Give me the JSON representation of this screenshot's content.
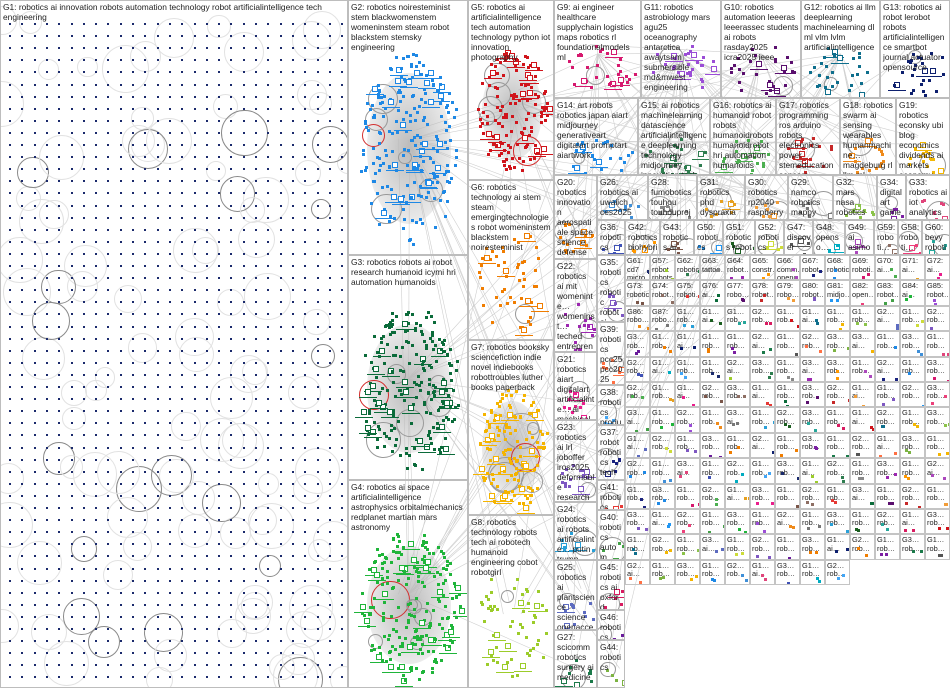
{
  "groups": [
    {
      "id": "G1",
      "label": "G1: robotics ai innovation robots automation technology robot artificialintelligence tech engineering",
      "color": "#1a2a6c"
    },
    {
      "id": "G2",
      "label": "G2: robotics noiresteminist stem blackwomenstem womeninstem steam robot blackstem stemsky engineering",
      "color": "#1e88e5"
    },
    {
      "id": "G3",
      "label": "G3: robotics robots ai robot research humanoid icymi hri automation humanoids",
      "color": "#0b6b3a"
    },
    {
      "id": "G4",
      "label": "G4: robotics ai space artificialintelligence astrophysics orbitalmechanics redplanet martian mars astronomy",
      "color": "#1fb53a"
    },
    {
      "id": "G5",
      "label": "G5: robotics ai artificialintelligence tech automation technology python iot innovation photography",
      "color": "#d0141b"
    },
    {
      "id": "G6",
      "label": "G6: robotics technology ai stem steam emergingtechnologies robot womeninstem blackstem noiresteminist",
      "color": "#f07d00"
    },
    {
      "id": "G7",
      "label": "G7: robotics booksky sciencefiction indie novel indiebooks robottroubles luther books paperback",
      "color": "#f5b400"
    },
    {
      "id": "G8",
      "label": "G8: robotics technology robots tech ai robotech humanoid engineering cobot robotgirl",
      "color": "#9ccc2a"
    },
    {
      "id": "G9",
      "label": "G9: ai engineer healthcare supplychain logistics maps robotics rl foundationalmodels ml",
      "color": "#d6186e"
    },
    {
      "id": "G10",
      "label": "G10: robotics automation leeeras leeerassec students ai robots rasday2025 icra2025 ieee",
      "color": "#5a0f6e"
    },
    {
      "id": "G11",
      "label": "G11: robotics astrobiology mars agu25 oceanography antarctica awaytsam submersible md&mwest engineering",
      "color": "#9b4dd6"
    },
    {
      "id": "G12",
      "label": "G12: robotics ai llm deeplearning machinelearning dl ml vlm lvlm artificialintelligence",
      "color": "#0e6e8c"
    },
    {
      "id": "G13",
      "label": "G13: robotics ai robot lerobot robots artificialintelligence smartbot journal actuator opensource",
      "color": "#0d1f6e"
    },
    {
      "id": "G14",
      "label": "G14: art robots robotics japan aiart midjourney generativeart digitalart promptart aiartwork",
      "color": "#1e88e5"
    },
    {
      "id": "G15",
      "label": "G15: ai robotics machinelearning datascience artificialintelligence deeplearning technology midjourney innovation tech",
      "color": "#2e7d4f"
    },
    {
      "id": "G16",
      "label": "G16: robotics ai humanoid robot robots humanoidrobots humanoidrobot hri automation humanoids",
      "color": "#4caf50"
    },
    {
      "id": "G17",
      "label": "G17: robotics programming ros arduino robots electronics power stemeducation sensors python…",
      "color": "#c62828"
    },
    {
      "id": "G18",
      "label": "G18: robotics swarm ai sensing wearables humanmachine… magdeburg rl llm ml",
      "color": "#ef8a1a"
    },
    {
      "id": "G19",
      "label": "G19: robotics econsky ubi blog economics dividends ai markets economy news",
      "color": "#f2b705"
    },
    {
      "id": "G20",
      "label": "G20: robotics innovation aerospatiale space science defense ai spacetech orbital orbitaldebris",
      "color": "#f07d00"
    },
    {
      "id": "G26",
      "label": "G26: robotics ai uwaiich ces2025 nvidia physicalai technology…",
      "color": "#3f8fd8"
    },
    {
      "id": "G28",
      "label": "G28: fumobotics touhou touhouproject fumo robotics…",
      "color": "#888"
    },
    {
      "id": "G31",
      "label": "G31: robotics phd dyspraxia dcd brnet body kinematic",
      "color": "#e6a020"
    },
    {
      "id": "G30",
      "label": "G30: robotics rp2040 raspberrypi… iot microcontrol…",
      "color": "#f29d38"
    },
    {
      "id": "G29",
      "label": "G29: namco robotics mappy 1980s videogames retrogaming…",
      "color": "#777"
    },
    {
      "id": "G32",
      "label": "G32: mars nasa robotics",
      "color": "#8bc34a"
    },
    {
      "id": "G34",
      "label": "G34: digitalart gameart pixelarts 16bits…",
      "color": "#7b1fa2"
    },
    {
      "id": "G33",
      "label": "G33: robotics ai iot analytics",
      "color": "#e0457b"
    },
    {
      "id": "G22",
      "label": "G22: robotics ai mit womeninte… womeninst… teched entreprene… womenintec… womensup…",
      "color": "#9c27b0"
    },
    {
      "id": "G21",
      "label": "G21: robotics aiart digitalart artificialinte… ai machinele… technology generative…",
      "color": "#e91e8c"
    },
    {
      "id": "G23",
      "label": "G23: robotics ai lrl joboffer iros2025 deformable research innovation rosmeetup… internship",
      "color": "#7e57c2"
    },
    {
      "id": "G24",
      "label": "G24: robotics ai robots artificialinte… putin trump ukraine musk…",
      "color": "#29a0d8"
    },
    {
      "id": "G25",
      "label": "G25: robotics ai plantscience science openaccess crop sustainable…",
      "color": "#5c6bc0"
    },
    {
      "id": "G27",
      "label": "G27: scicomm robotics surgery ai medicine",
      "color": "#1b7a4a"
    },
    {
      "id": "G36",
      "label": "G36: robotics robot robots…",
      "color": "#3f51b5"
    },
    {
      "id": "G42",
      "label": "G42: robotics biohybrid biomater…",
      "color": "#ff9800"
    },
    {
      "id": "G43",
      "label": "G43: robotics ai 3dprinting neuromo…",
      "color": "#795548"
    },
    {
      "id": "G50",
      "label": "G50: robotics modell…",
      "color": "#2196f3"
    },
    {
      "id": "G51",
      "label": "G51: robotics robot ai",
      "color": "#1b5e20"
    },
    {
      "id": "G52",
      "label": "G52: robotics hula hoop…",
      "color": "#cddc39"
    },
    {
      "id": "G47",
      "label": "G47: discover news new…",
      "color": "#555"
    },
    {
      "id": "G48",
      "label": "G48: openso… robotics futures…",
      "color": "#00acc1"
    },
    {
      "id": "G49",
      "label": "G49: ai asimov law robotic…",
      "color": "#ab47bc"
    },
    {
      "id": "G59",
      "label": "G59: roboti… stem edusk…",
      "color": "#8d6e63"
    },
    {
      "id": "G58",
      "label": "G58: roboti… mass… innov…",
      "color": "#ec407a"
    },
    {
      "id": "G60",
      "label": "G60: bevy roboti… rust?",
      "color": "#26a69a"
    },
    {
      "id": "G35",
      "label": "G35: robotics robotic robot ai compet… surgica…",
      "color": "#7e57c2"
    },
    {
      "id": "G39",
      "label": "G39: robotics pcc25 pcc2025 colorec…",
      "color": "#ff7043"
    },
    {
      "id": "G38",
      "label": "G38: robotics product plembs… stem…",
      "color": "#42a5f5"
    },
    {
      "id": "G37",
      "label": "G37: robot robotics tech thicc…",
      "color": "#1a237e"
    },
    {
      "id": "G41",
      "label": "G41: robotics swarmi… emerg… blobots…",
      "color": "#e53935"
    },
    {
      "id": "G40",
      "label": "G40: robotics autom… ai…",
      "color": "#43a047"
    },
    {
      "id": "G45",
      "label": "G45: robotics ai oxford…",
      "color": "#d81b60"
    },
    {
      "id": "G46",
      "label": "G46: robotics ttrpg kickste…",
      "color": "#6a1b9a"
    },
    {
      "id": "G44",
      "label": "G44: robotics",
      "color": "#7cb342"
    }
  ],
  "tiny_cells": [
    "G61: cd7 micro… night…",
    "G57: robot robots…",
    "G62: robotics…",
    "G63: tattoo…",
    "G64: robot…",
    "G65: constr…",
    "G66: comm… openc…",
    "G67: robot…",
    "G68: robotics…",
    "G69: roboti…",
    "G70: ai…",
    "G71: ai…",
    "G72: ai…",
    "G73: robotic…",
    "G74: robot…",
    "G75: roboti…",
    "G76: ai…",
    "G77: robo…",
    "G78: robot…",
    "G79: robo…",
    "G80: robot…",
    "G81: midjo…",
    "G82: open…",
    "G83: robot…",
    "G84: ai…",
    "G85: robot…",
    "G86: robo…",
    "G87: robo…",
    "G1… rob…",
    "G1… ai…",
    "G1… rob…",
    "G2… rob…",
    "G1… rob…",
    "G1… ai…",
    "G1… rob…",
    "G1… rob…",
    "G2… ai…",
    "G1… rob…",
    "G2… rob…",
    "G3… rob…",
    "G1… rob…",
    "G1… ai…",
    "G1… rob…",
    "G1… rob…",
    "G2… ai…",
    "G1… rob…",
    "G2… rob…",
    "G3… rob…",
    "G3… ai…",
    "G1… rob…",
    "G3… rob…",
    "G1… rob…",
    "G2… rob…",
    "G1… ai…",
    "G1… rob…",
    "G1… rob…",
    "G2… ai…",
    "G3… rob…",
    "G1… rob…",
    "G3… ai…",
    "G3… rob…",
    "G1… rob…",
    "G2… ai…",
    "G1… rob…",
    "G3… rob…",
    "G2… rob…",
    "G1… rob…",
    "G1… ai…",
    "G2… rob…",
    "G3… rob…",
    "G1… ai…",
    "G1… rob…",
    "G3… rob…",
    "G2… rob…",
    "G1… ai…",
    "G1… rob…",
    "G2… rob…",
    "G3… rob…",
    "G3… ai…",
    "G1… rob…",
    "G2… rob…",
    "G1… rob…",
    "G3… ai…",
    "G1… rob…",
    "G2… rob…",
    "G3… rob…",
    "G1… rob…",
    "G1… ai…",
    "G2… rob…",
    "G1… rob…",
    "G3… rob…",
    "G1… ai…",
    "G2… rob…",
    "G1… rob…",
    "G3… rob…",
    "G1… rob…",
    "G2… ai…",
    "G1… rob…",
    "G3… rob…",
    "G1… rob…",
    "G2… rob…",
    "G1… ai…",
    "G3… rob…",
    "G1… rob…",
    "G2… rob…",
    "G1… rob…",
    "G3… ai…",
    "G1… rob…",
    "G2… rob…",
    "G1… rob…",
    "G3… rob…",
    "G1… ai…",
    "G2… rob…",
    "G1… rob…",
    "G3… rob…",
    "G1… rob…",
    "G2… ai…",
    "G1… rob…",
    "G3… rob…",
    "G1… rob…",
    "G2… rob…",
    "G1… ai…",
    "G3… rob…",
    "G1… rob…",
    "G2… rob…",
    "G1… rob…",
    "G3… ai…",
    "G1… rob…",
    "G2… rob…",
    "G1… rob…",
    "G3… rob…",
    "G1… ai…",
    "G2… rob…",
    "G1… rob…",
    "G3… rob…",
    "G1… rob…",
    "G2… ai…",
    "G1… rob…",
    "G3… rob…",
    "G1… rob…",
    "G2… rob…",
    "G1… ai…",
    "G3… rob…",
    "G1… rob…",
    "G2… rob…",
    "G1… rob…",
    "G3… ai…",
    "G1… rob…",
    "G2… rob…",
    "G1… rob…",
    "G3… rob…",
    "G1… ai…",
    "G2… rob…",
    "G1… rob…",
    "G3… rob…",
    "G1… rob…",
    "G2… ai…",
    "G1… rob…",
    "G3… rob…",
    "G1… rob…",
    "G2… rob…",
    "G1… ai…",
    "G3… rob…",
    "G1… rob…",
    "G2… rob…"
  ]
}
